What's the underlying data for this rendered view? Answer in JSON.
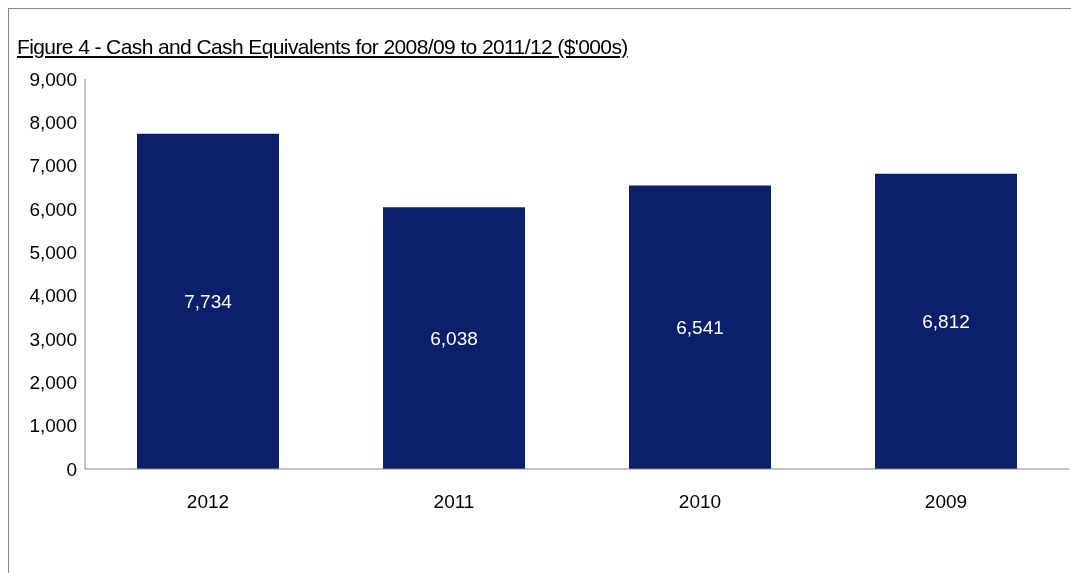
{
  "chart_data": {
    "type": "bar",
    "title": "Figure 4 - Cash and Cash Equivalents for 2008/09 to 2011/12 ($'000s)",
    "categories": [
      "2012",
      "2011",
      "2010",
      "2009"
    ],
    "values": [
      7734,
      6038,
      6541,
      6812
    ],
    "color": "#0c1f6b",
    "ylim": [
      0,
      9000
    ],
    "yticks": [
      {
        "value": 0,
        "label": "0"
      },
      {
        "value": 1000,
        "label": "1,000"
      },
      {
        "value": 2000,
        "label": "2,000"
      },
      {
        "value": 3000,
        "label": "3,000"
      },
      {
        "value": 4000,
        "label": "4,000"
      },
      {
        "value": 5000,
        "label": "5,000"
      },
      {
        "value": 6000,
        "label": "6,000"
      },
      {
        "value": 7000,
        "label": "7,000"
      },
      {
        "value": 8000,
        "label": "8,000"
      },
      {
        "value": 9000,
        "label": "9,000"
      }
    ],
    "value_labels": [
      "7,734",
      "6,038",
      "6,541",
      "6,812"
    ],
    "grid": false
  }
}
